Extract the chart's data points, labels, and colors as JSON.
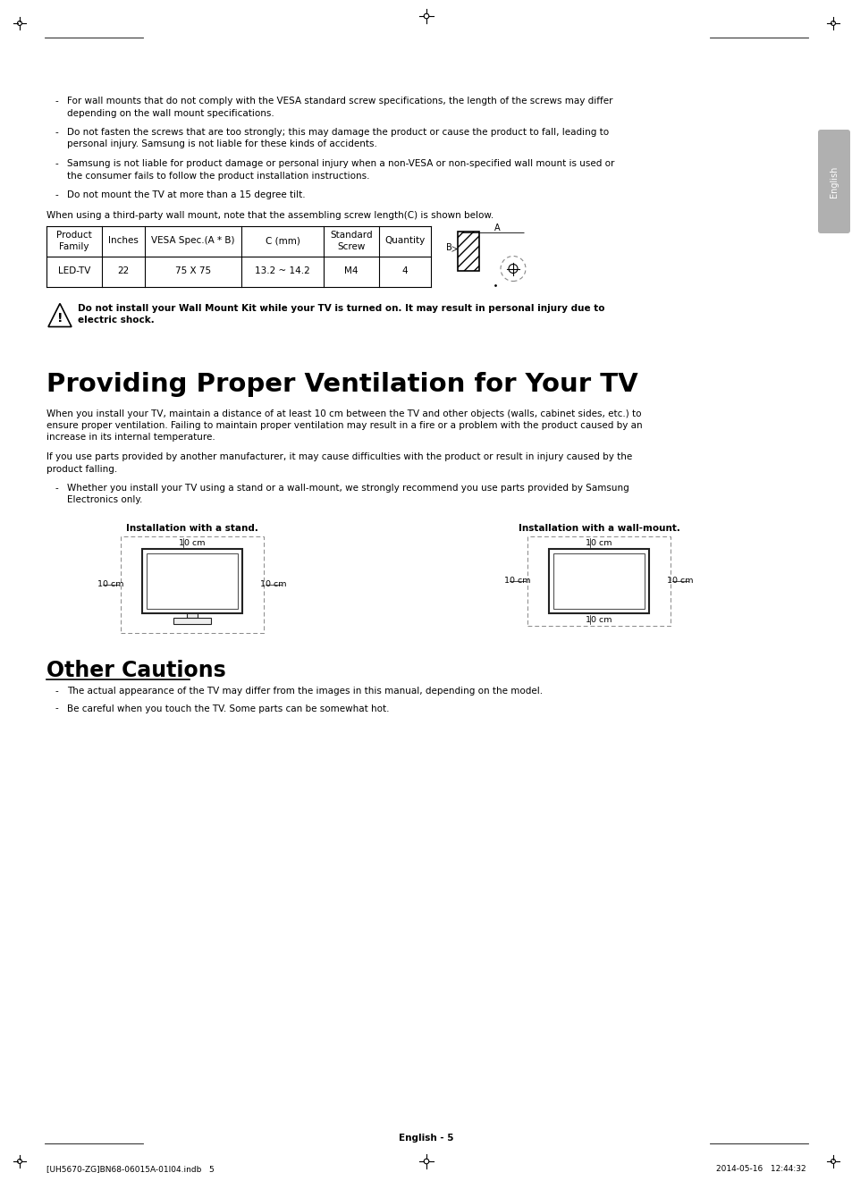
{
  "bg_color": "#ffffff",
  "bullet_points_top": [
    [
      "For wall mounts that do not comply with the VESA standard screw specifications, the length of the screws may differ",
      "depending on the wall mount specifications."
    ],
    [
      "Do not fasten the screws that are too strongly; this may damage the product or cause the product to fall, leading to",
      "personal injury. Samsung is not liable for these kinds of accidents."
    ],
    [
      "Samsung is not liable for product damage or personal injury when a non-VESA or non-specified wall mount is used or",
      "the consumer fails to follow the product installation instructions."
    ],
    [
      "Do not mount the TV at more than a 15 degree tilt."
    ]
  ],
  "table_note": "When using a third-party wall mount, note that the assembling screw length(C) is shown below.",
  "table_headers": [
    "Product\nFamily",
    "Inches",
    "VESA Spec.(A * B)",
    "C (mm)",
    "Standard\nScrew",
    "Quantity"
  ],
  "table_row": [
    "LED-TV",
    "22",
    "75 X 75",
    "13.2 ~ 14.2",
    "M4",
    "4"
  ],
  "warning_text_line1": "Do not install your Wall Mount Kit while your TV is turned on. It may result in personal injury due to",
  "warning_text_line2": "electric shock.",
  "section_title": "Providing Proper Ventilation for Your TV",
  "section_para1_lines": [
    "When you install your TV, maintain a distance of at least 10 cm between the TV and other objects (walls, cabinet sides, etc.) to",
    "ensure proper ventilation. Failing to maintain proper ventilation may result in a fire or a problem with the product caused by an",
    "increase in its internal temperature."
  ],
  "section_para2_lines": [
    "If you use parts provided by another manufacturer, it may cause difficulties with the product or result in injury caused by the",
    "product falling."
  ],
  "section_bullet_lines": [
    "Whether you install your TV using a stand or a wall-mount, we strongly recommend you use parts provided by Samsung",
    "Electronics only."
  ],
  "install_stand_label": "Installation with a stand.",
  "install_wall_label": "Installation with a wall-mount.",
  "other_cautions_title": "Other Cautions",
  "other_cautions_bullets": [
    "The actual appearance of the TV may differ from the images in this manual, depending on the model.",
    "Be careful when you touch the TV. Some parts can be somewhat hot."
  ],
  "footer_center": "English - 5",
  "footer_left": "[UH5670-ZG]BN68-06015A-01I04.indb   5",
  "footer_right": "2014-05-16   12:44:32",
  "english_tab_color": "#b0b0b0",
  "text_color": "#000000"
}
